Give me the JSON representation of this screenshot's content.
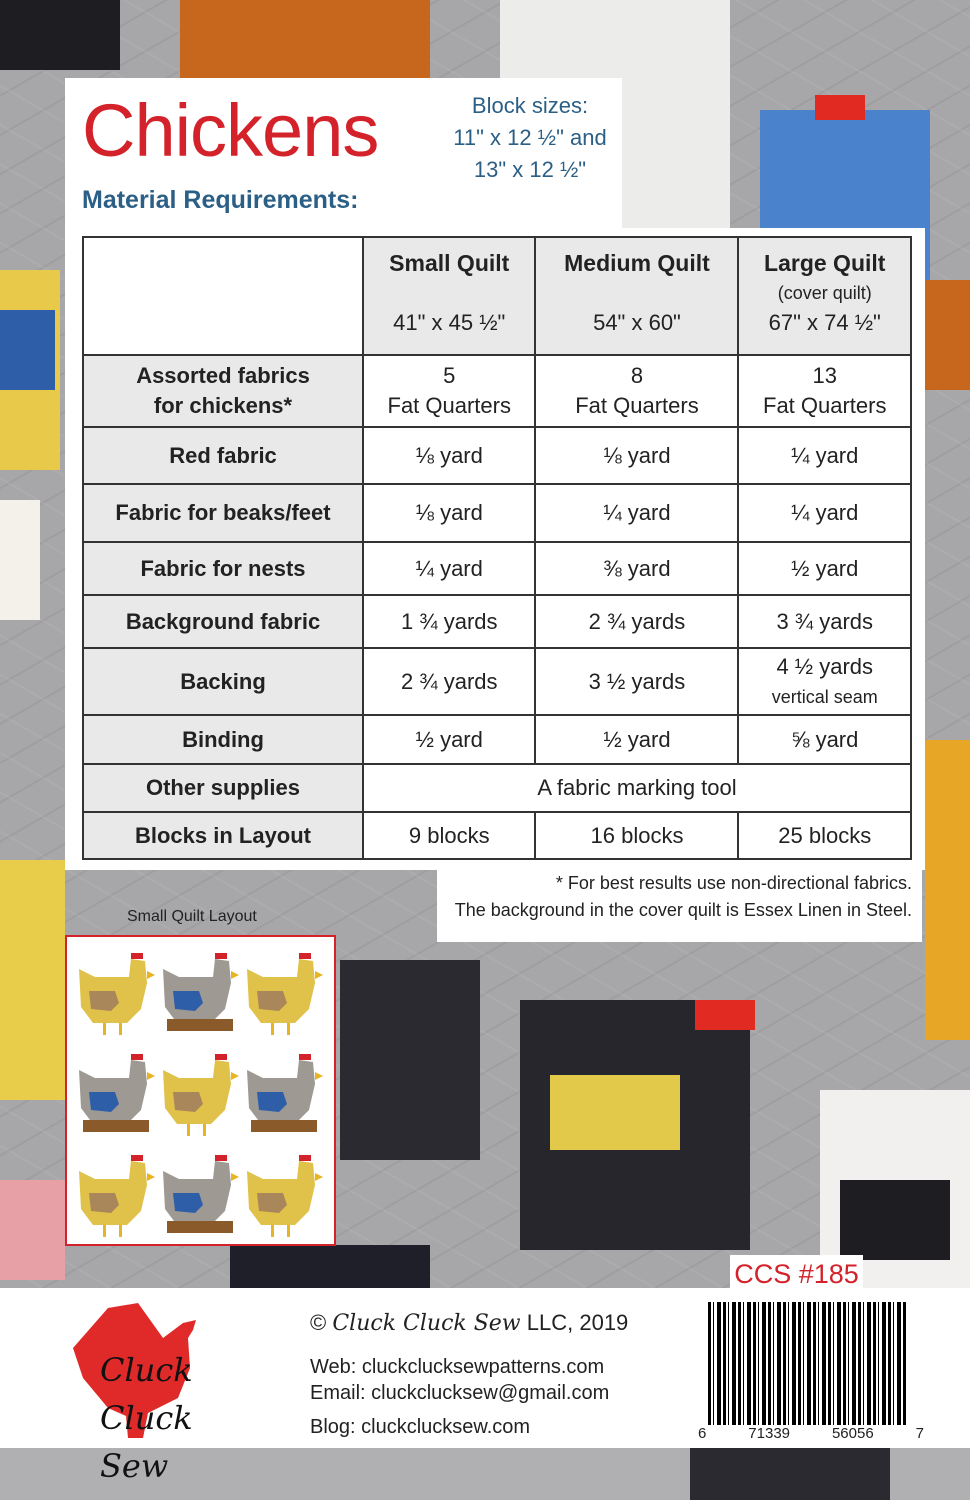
{
  "title": "Chickens",
  "block_sizes": [
    "Block sizes:",
    "11\" x 12 ½\" and",
    "13\" x 12 ½\""
  ],
  "material_heading": "Material Requirements:",
  "table": {
    "columns": [
      {
        "name": "Small Quilt",
        "sub": "",
        "size": "41\" x 45 ½\""
      },
      {
        "name": "Medium Quilt",
        "sub": "",
        "size": "54\" x 60\""
      },
      {
        "name": "Large Quilt",
        "sub": "(cover quilt)",
        "size": "67\" x 74 ½\""
      }
    ],
    "rows": [
      {
        "label": [
          "Assorted fabrics",
          "for chickens*"
        ],
        "values": [
          [
            "5",
            "Fat Quarters"
          ],
          [
            "8",
            "Fat Quarters"
          ],
          [
            "13",
            "Fat Quarters"
          ]
        ]
      },
      {
        "label": [
          "Red fabric"
        ],
        "values": [
          [
            "⅛ yard"
          ],
          [
            "⅛ yard"
          ],
          [
            "¼ yard"
          ]
        ]
      },
      {
        "label": [
          "Fabric for beaks/feet"
        ],
        "values": [
          [
            "⅛ yard"
          ],
          [
            "¼ yard"
          ],
          [
            "¼ yard"
          ]
        ]
      },
      {
        "label": [
          "Fabric for nests"
        ],
        "values": [
          [
            "¼ yard"
          ],
          [
            "⅜ yard"
          ],
          [
            "½ yard"
          ]
        ]
      },
      {
        "label": [
          "Background fabric"
        ],
        "values": [
          [
            "1 ¾ yards"
          ],
          [
            "2 ¾ yards"
          ],
          [
            "3 ¾ yards"
          ]
        ]
      },
      {
        "label": [
          "Backing"
        ],
        "values": [
          [
            "2 ¾ yards"
          ],
          [
            "3 ½ yards"
          ],
          [
            "4 ½ yards",
            "vertical seam"
          ]
        ]
      },
      {
        "label": [
          "Binding"
        ],
        "values": [
          [
            "½ yard"
          ],
          [
            "½ yard"
          ],
          [
            "⅝ yard"
          ]
        ]
      }
    ],
    "other_supplies": {
      "label": "Other supplies",
      "value": "A fabric marking tool"
    },
    "blocks": {
      "label": "Blocks in Layout",
      "values": [
        "9 blocks",
        "16 blocks",
        "25 blocks"
      ]
    }
  },
  "notes": [
    "* For best results use non-directional fabrics.",
    "The background in the cover quilt is Essex Linen in Steel."
  ],
  "layout_label": "Small Quilt Layout",
  "layout_blocks": [
    "yellow",
    "grey",
    "yellow",
    "grey",
    "yellow",
    "grey",
    "yellow",
    "grey",
    "yellow"
  ],
  "pattern_code": "CCS #185",
  "footer": {
    "logo_text": "Cluck Cluck Sew",
    "copyright_symbol": "©",
    "copyright_brand": "Cluck Cluck Sew",
    "copyright_rest": "LLC, 2019",
    "web": "Web: cluckclucksewpatterns.com",
    "email": "Email: cluckclucksew@gmail.com",
    "blog": "Blog:  cluckclucksew.com"
  },
  "barcode_digits": [
    "6",
    "71339",
    "56056",
    "7"
  ],
  "colors": {
    "title_red": "#d3222a",
    "heading_blue": "#2b5f86",
    "chicken_yellow": "#e0c24a",
    "chicken_grey": "#9e9a93",
    "wing_blue": "#2f5ea8",
    "comb_red": "#d3222a",
    "nest_brown": "#8a5a2b"
  }
}
